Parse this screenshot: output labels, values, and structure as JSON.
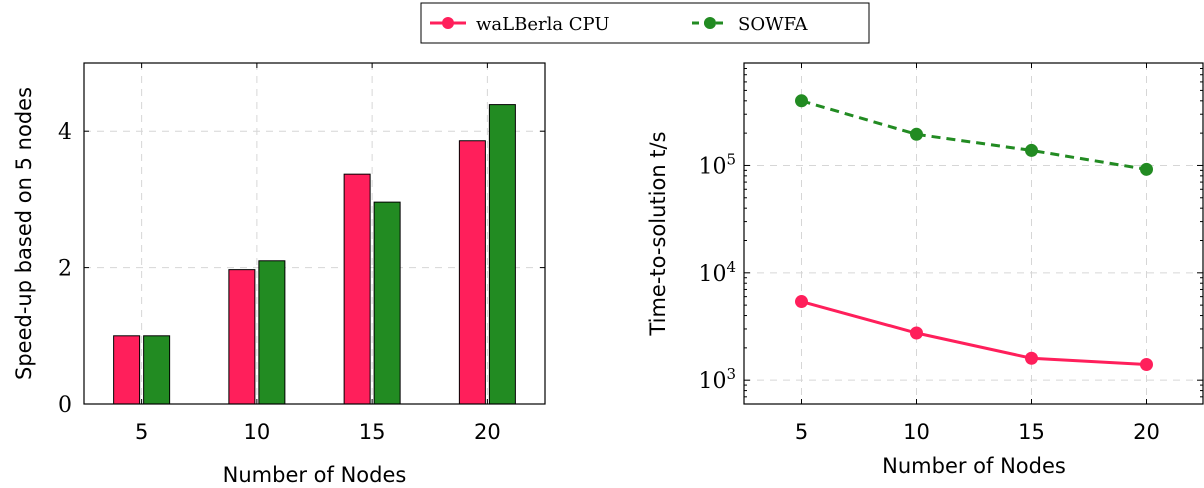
{
  "legend": {
    "items": [
      {
        "label": "waLBerla CPU",
        "color": "#ff1f5b"
      },
      {
        "label": "SOWFA",
        "color": "#228b22"
      }
    ]
  },
  "chart_data": [
    {
      "type": "bar",
      "categories": [
        "5",
        "10",
        "15",
        "20"
      ],
      "series": [
        {
          "name": "waLBerla CPU",
          "color": "#ff1f5b",
          "values": [
            1.0,
            1.97,
            3.37,
            3.86
          ]
        },
        {
          "name": "SOWFA",
          "color": "#228b22",
          "values": [
            1.0,
            2.1,
            2.96,
            4.39
          ]
        }
      ],
      "xlabel": "Number of Nodes",
      "ylabel": "Speed-up based on 5 nodes",
      "ylim": [
        0,
        5
      ],
      "yticks": [
        "0",
        "2",
        "4"
      ],
      "grid": true
    },
    {
      "type": "line",
      "x": [
        5,
        10,
        15,
        20
      ],
      "xticks": [
        "5",
        "10",
        "15",
        "20"
      ],
      "xlim": [
        2.5,
        22.5
      ],
      "series": [
        {
          "name": "waLBerla CPU",
          "color": "#ff1f5b",
          "style": "solid",
          "values": [
            5400,
            2750,
            1600,
            1400
          ]
        },
        {
          "name": "SOWFA",
          "color": "#228b22",
          "style": "dashed",
          "values": [
            400000,
            195000,
            138000,
            92000
          ]
        }
      ],
      "xlabel": "Number of Nodes",
      "ylabel": "Time-to-solution t/s",
      "yscale": "log",
      "ylim": [
        600,
        900000
      ],
      "yticks": [
        {
          "value": 1000,
          "label": "10",
          "exp": "3"
        },
        {
          "value": 10000,
          "label": "10",
          "exp": "4"
        },
        {
          "value": 100000,
          "label": "10",
          "exp": "5"
        }
      ],
      "grid": true
    }
  ]
}
